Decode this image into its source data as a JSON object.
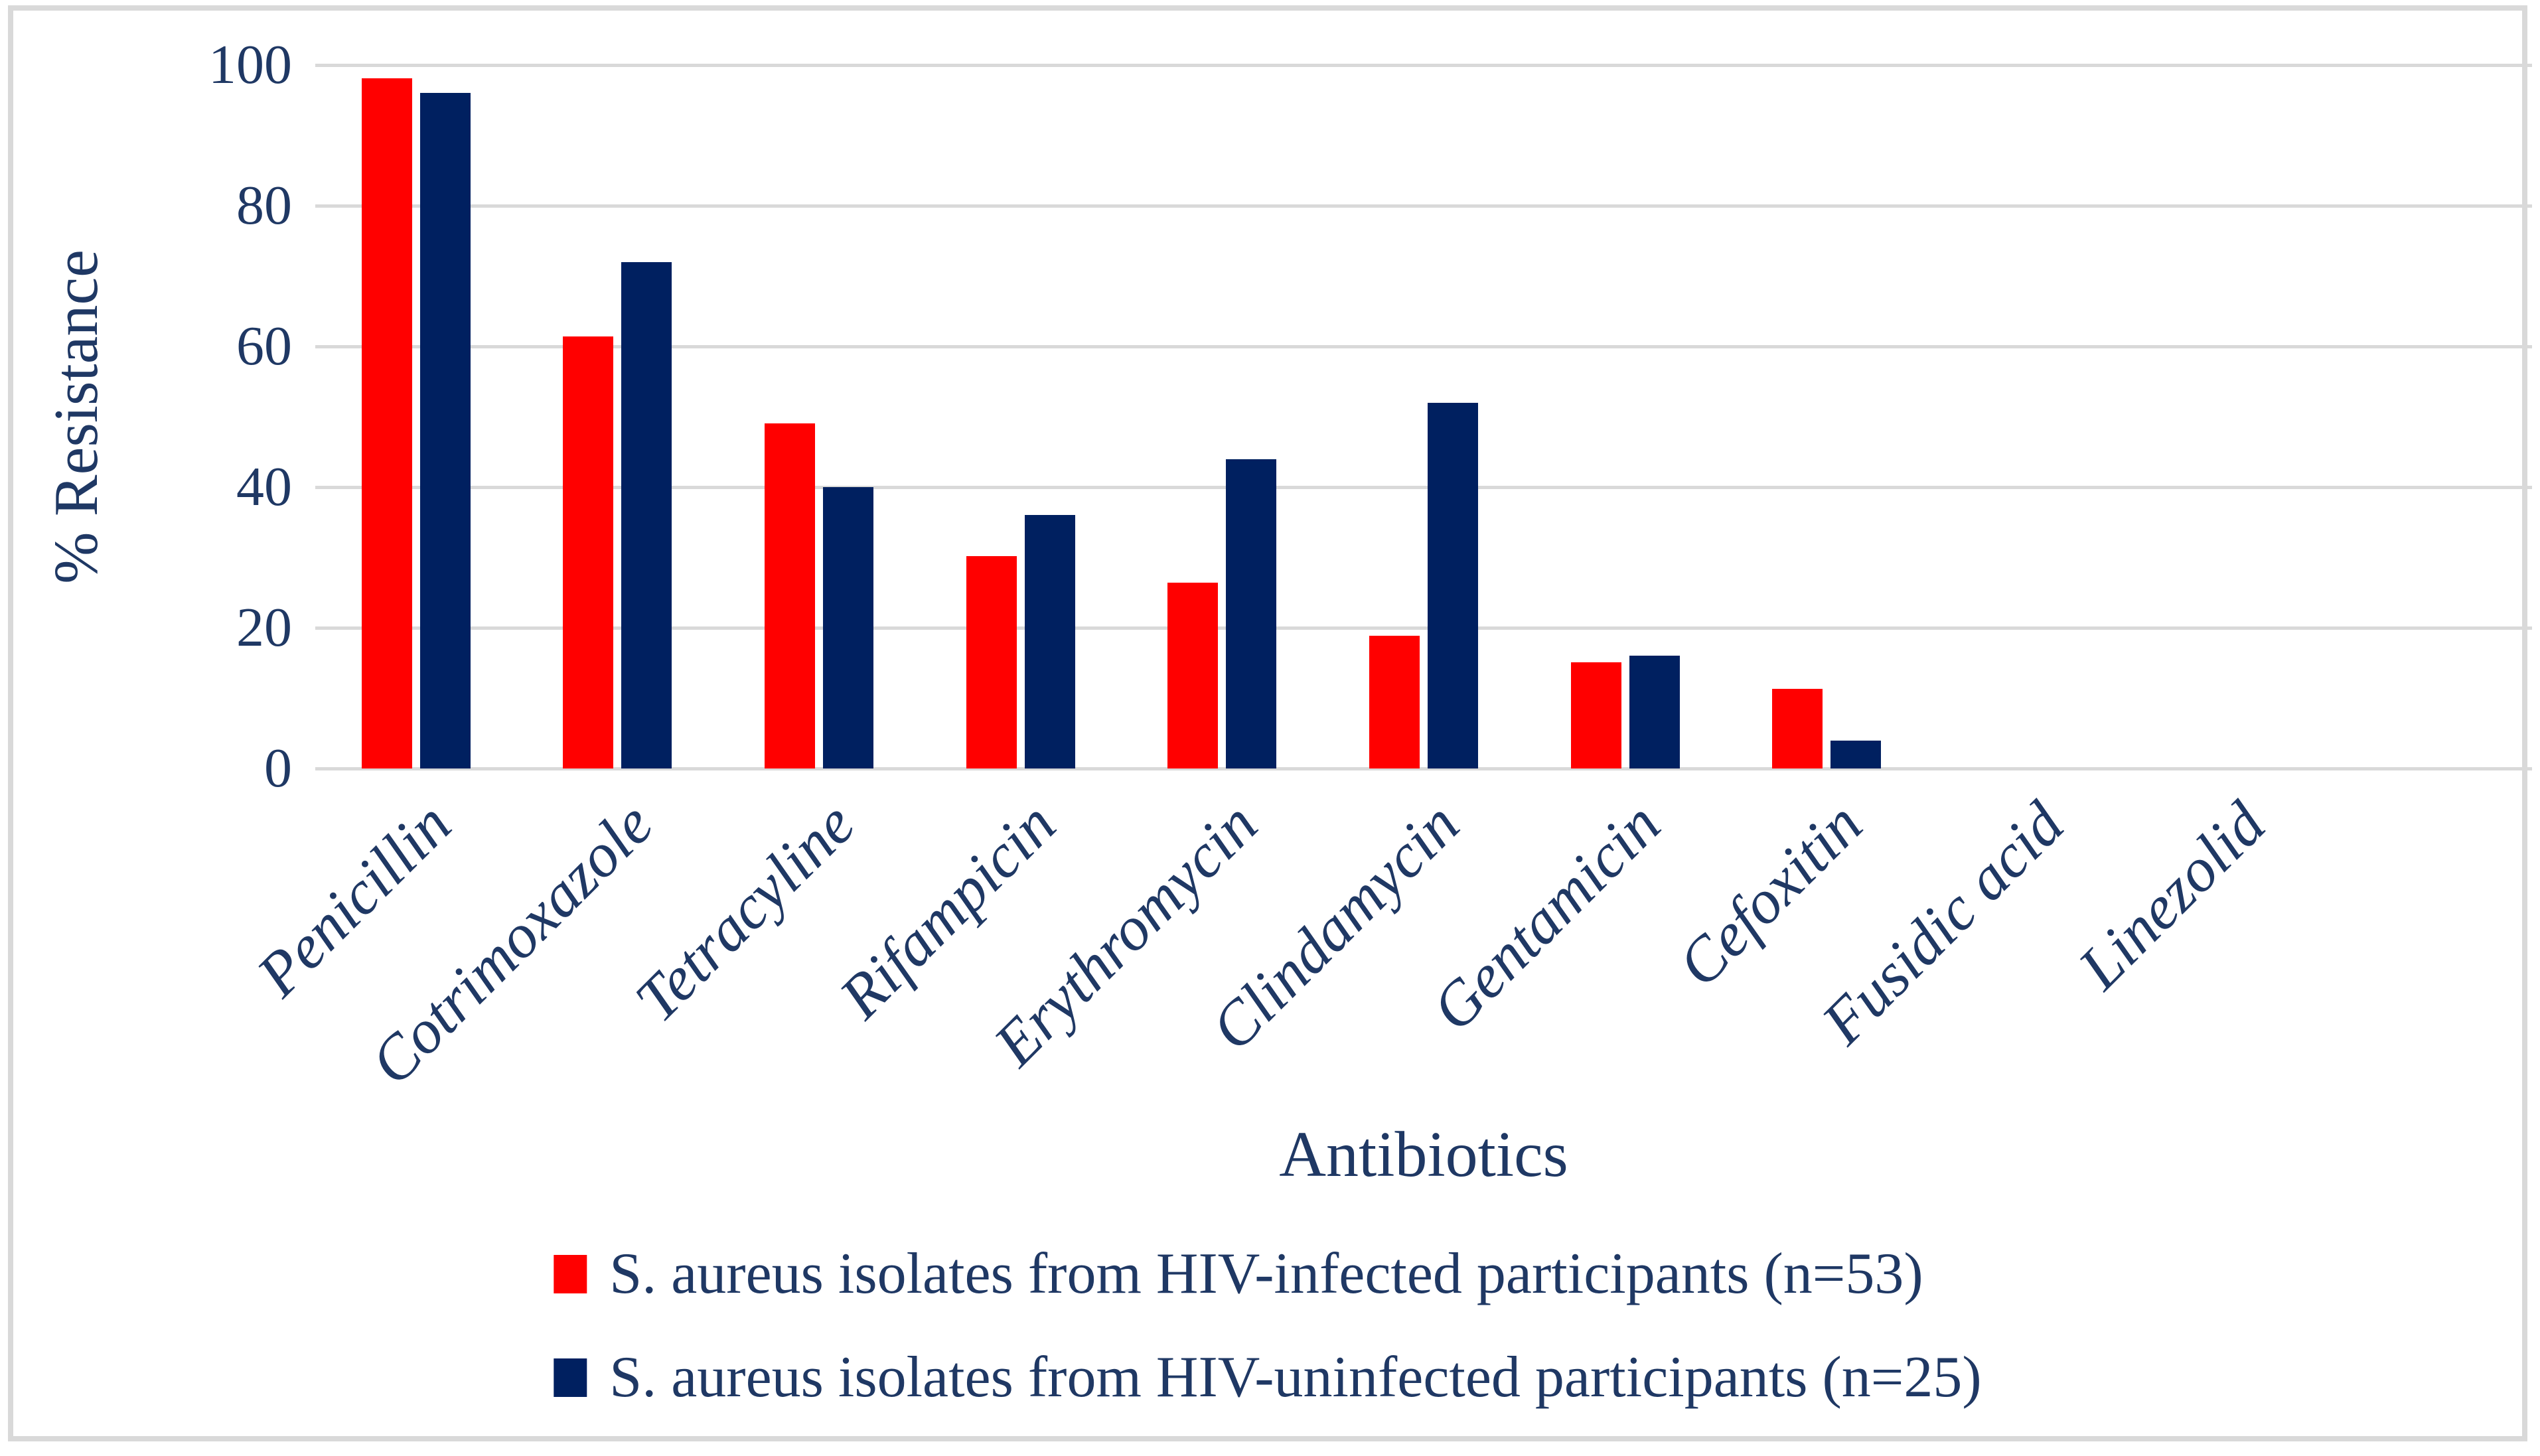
{
  "chart_data": {
    "type": "bar",
    "title": "",
    "categories": [
      "Penicillin",
      "Cotrimoxazole",
      "Tetracyline",
      "Rifampicin",
      "Erythromycin",
      "Clindamycin",
      "Gentamicin",
      "Cefoxitin",
      "Fusidic acid",
      "Linezolid"
    ],
    "series": [
      {
        "name": "S. aureus isolates from HIV-infected participants (n=53)",
        "color": "#FF0000",
        "values": [
          98.1,
          61.4,
          49.1,
          30.2,
          26.4,
          18.9,
          15.1,
          11.3,
          0,
          0
        ]
      },
      {
        "name": "S. aureus isolates from HIV-uninfected participants (n=25)",
        "color": "#002060",
        "values": [
          96,
          72,
          40,
          36,
          44,
          52,
          16,
          4,
          0,
          0
        ]
      }
    ],
    "xlabel": "Antibiotics",
    "ylabel": "% Resistance",
    "ylim": [
      0,
      100
    ],
    "yticks": [
      0,
      20,
      40,
      60,
      80,
      100
    ],
    "grid": "horizontal-only",
    "legend_position": "bottom",
    "extra_empty_category_slots": 1
  },
  "colors": {
    "text": "#1F3864",
    "gridline": "#D9D9D9",
    "axis_line": "#D9D9D9",
    "chart_border": "#D9D9D9",
    "background": "#FFFFFF",
    "series_red": "#FF0000",
    "series_navy": "#002060"
  }
}
